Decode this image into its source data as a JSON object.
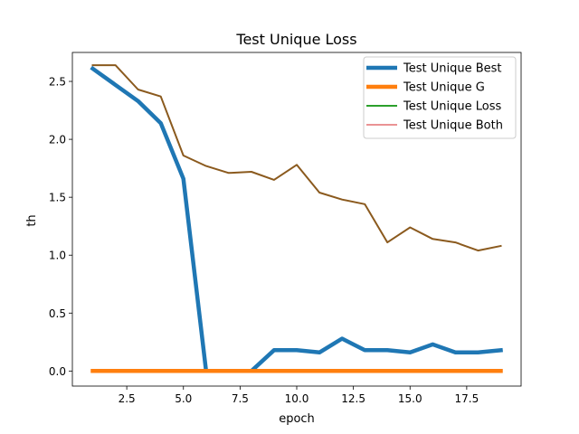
{
  "chart_data": {
    "type": "line",
    "title": "Test Unique Loss",
    "xlabel": "epoch",
    "ylabel": "th",
    "xlim": [
      0.1,
      19.9
    ],
    "ylim": [
      -0.13,
      2.75
    ],
    "xticks": [
      2.5,
      5.0,
      7.5,
      10.0,
      12.5,
      15.0,
      17.5
    ],
    "xtick_labels": [
      "2.5",
      "5.0",
      "7.5",
      "10.0",
      "12.5",
      "15.0",
      "17.5"
    ],
    "yticks": [
      0.0,
      0.5,
      1.0,
      1.5,
      2.0,
      2.5
    ],
    "ytick_labels": [
      "0.0",
      "0.5",
      "1.0",
      "1.5",
      "2.0",
      "2.5"
    ],
    "grid": false,
    "legend_position": "top-right",
    "x": [
      1,
      2,
      3,
      4,
      5,
      6,
      7,
      8,
      9,
      10,
      11,
      12,
      13,
      14,
      15,
      16,
      17,
      18,
      19
    ],
    "series": [
      {
        "name": "Test Unique Best",
        "color": "#1f77b4",
        "style": "thick",
        "values": [
          2.61,
          2.47,
          2.33,
          2.14,
          1.66,
          0.0,
          0.0,
          0.0,
          0.18,
          0.18,
          0.16,
          0.28,
          0.18,
          0.18,
          0.16,
          0.23,
          0.16,
          0.16,
          0.18
        ]
      },
      {
        "name": "Test Unique G",
        "color": "#ff7f0e",
        "style": "thick",
        "values": [
          0,
          0,
          0,
          0,
          0,
          0,
          0,
          0,
          0,
          0,
          0,
          0,
          0,
          0,
          0,
          0,
          0,
          0,
          0
        ]
      },
      {
        "name": "Test Unique Loss",
        "color": "#2ca02c",
        "style": "medium",
        "values": [
          2.64,
          2.64,
          2.43,
          2.37,
          1.86,
          1.77,
          1.71,
          1.72,
          1.65,
          1.78,
          1.54,
          1.48,
          1.44,
          1.11,
          1.24,
          1.14,
          1.11,
          1.04,
          1.08
        ]
      },
      {
        "name": "Test Unique Both",
        "color": "#d62728",
        "style": "thin",
        "values": [
          2.64,
          2.64,
          2.43,
          2.37,
          1.86,
          1.77,
          1.71,
          1.72,
          1.65,
          1.78,
          1.54,
          1.48,
          1.44,
          1.11,
          1.24,
          1.14,
          1.11,
          1.04,
          1.08
        ]
      }
    ],
    "overlap_color": "#8b5a1e"
  }
}
